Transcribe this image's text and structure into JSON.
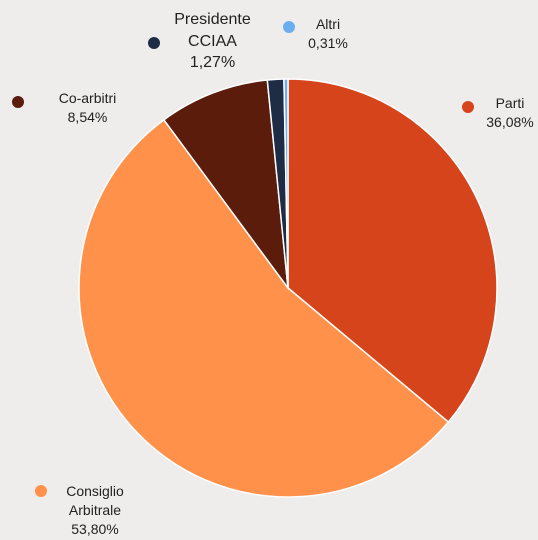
{
  "chart_data": {
    "type": "pie",
    "slices": [
      {
        "name": "Parti",
        "name_lines": [
          "Parti"
        ],
        "value": 36.08,
        "label": "36,08%",
        "color": "#d5441b"
      },
      {
        "name": "Consiglio Arbitrale",
        "name_lines": [
          "Consiglio",
          "Arbitrale"
        ],
        "value": 53.8,
        "label": "53,80%",
        "color": "#ff914a"
      },
      {
        "name": "Co-arbitri",
        "name_lines": [
          "Co-arbitri"
        ],
        "value": 8.54,
        "label": "8,54%",
        "color": "#5b1c0b"
      },
      {
        "name": "Presidente CCIAA",
        "name_lines": [
          "Presidente",
          "CCIAA"
        ],
        "value": 1.27,
        "label": "1,27%",
        "color": "#1e2d45"
      },
      {
        "name": "Altri",
        "name_lines": [
          "Altri"
        ],
        "value": 0.31,
        "label": "0,31%",
        "color": "#6aaef0"
      }
    ]
  }
}
